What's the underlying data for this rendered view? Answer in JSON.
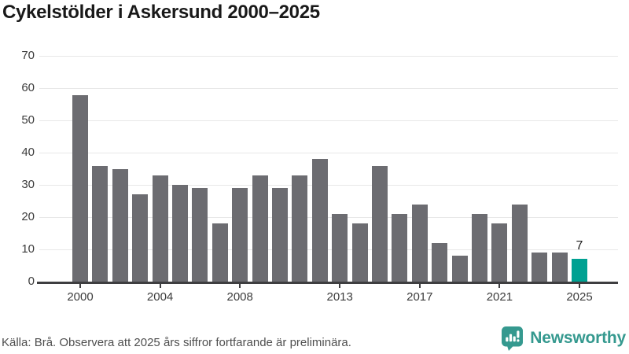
{
  "title": "Cykelstölder i Askersund 2000–2025",
  "chart_data": {
    "type": "bar",
    "title": "Cykelstölder i Askersund 2000–2025",
    "categories": [
      2000,
      2001,
      2002,
      2003,
      2004,
      2005,
      2006,
      2007,
      2008,
      2009,
      2010,
      2011,
      2012,
      2013,
      2014,
      2015,
      2016,
      2017,
      2018,
      2019,
      2020,
      2021,
      2022,
      2023,
      2024,
      2025
    ],
    "values": [
      58,
      36,
      35,
      27,
      33,
      30,
      29,
      18,
      29,
      33,
      29,
      33,
      38,
      21,
      18,
      36,
      21,
      24,
      12,
      8,
      21,
      18,
      24,
      9,
      9,
      7
    ],
    "ylim": [
      0,
      70
    ],
    "y_ticks": [
      0,
      10,
      20,
      30,
      40,
      50,
      60,
      70
    ],
    "x_tick_labels": [
      "2000",
      "2004",
      "2008",
      "2013",
      "2017",
      "2021",
      "2025"
    ],
    "grid": "horizontal",
    "legend": "none",
    "bar_color": "#6c6c71",
    "highlight_color": "#00a192",
    "highlight_index": 25,
    "annotation": {
      "category": "2025",
      "label": "7"
    }
  },
  "footer": {
    "source": "Källa: Brå. Observera att 2025 års siffror fortfarande är preliminära.",
    "brand": "Newsworthy",
    "brand_color": "#35998f"
  }
}
